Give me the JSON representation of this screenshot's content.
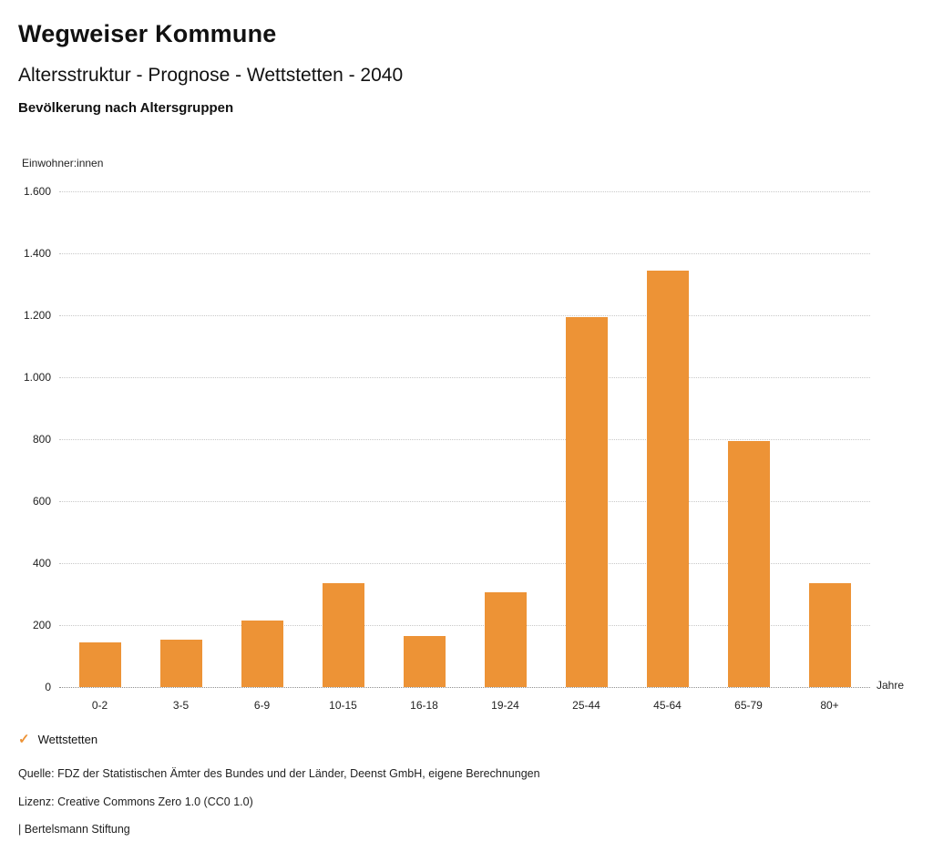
{
  "header": {
    "title": "Wegweiser Kommune",
    "subtitle": "Altersstruktur - Prognose - Wettstetten - 2040",
    "chart_heading": "Bevölkerung nach Altersgruppen"
  },
  "chart_data": {
    "type": "bar",
    "title": "Bevölkerung nach Altersgruppen",
    "ylabel": "Einwohner:innen",
    "xlabel": "Jahre",
    "categories": [
      "0-2",
      "3-5",
      "6-9",
      "10-15",
      "16-18",
      "19-24",
      "25-44",
      "45-64",
      "65-79",
      "80+"
    ],
    "series": [
      {
        "name": "Wettstetten",
        "values": [
          145,
          152,
          215,
          335,
          165,
          305,
          1195,
          1345,
          795,
          335
        ]
      }
    ],
    "ylim": [
      0,
      1600
    ],
    "ytick_step": 200,
    "ytick_labels": [
      "0",
      "200",
      "400",
      "600",
      "800",
      "1.000",
      "1.200",
      "1.400",
      "1.600"
    ],
    "grid": "horizontal-dotted",
    "bar_color": "#ED9336",
    "legend_position": "bottom-left"
  },
  "legend": {
    "items": [
      {
        "label": "Wettstetten",
        "color": "#ED9336",
        "marker": "check"
      }
    ],
    "check_glyph": "✓"
  },
  "footer": {
    "source": "Quelle: FDZ der Statistischen Ämter des Bundes und der Länder, Deenst GmbH, eigene Berechnungen",
    "license": "Lizenz: Creative Commons Zero 1.0 (CC0 1.0)",
    "brand": "| Bertelsmann Stiftung"
  }
}
